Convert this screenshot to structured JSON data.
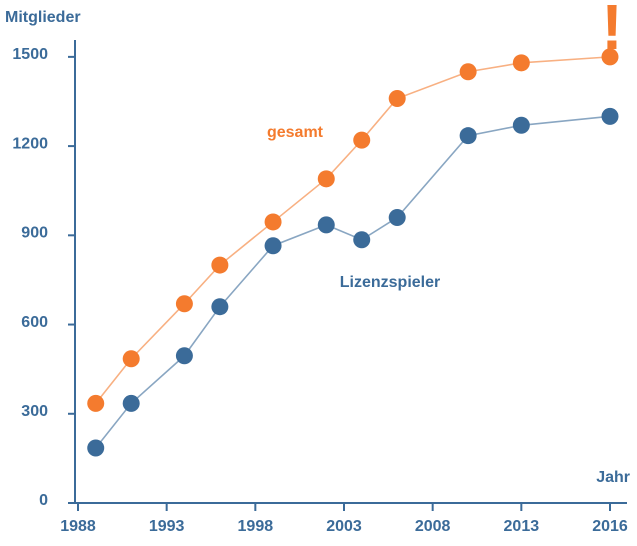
{
  "chart_data": {
    "type": "line",
    "y_label": "Mitglieder",
    "x_label": "Jahr",
    "annotation": "!",
    "x": [
      1989,
      1991,
      1994,
      1996,
      1999,
      2002,
      2004,
      2006,
      2010,
      2013,
      2016
    ],
    "series": [
      {
        "name": "gesamt",
        "color": "#f47b2e",
        "values": [
          335,
          485,
          670,
          800,
          945,
          1090,
          1220,
          1360,
          1450,
          1480,
          1500
        ]
      },
      {
        "name": "Lizenzspieler",
        "color": "#3b6b99",
        "values": [
          185,
          335,
          495,
          660,
          865,
          935,
          885,
          960,
          1235,
          1270,
          1300
        ]
      }
    ],
    "xlim": [
      1988,
      2016
    ],
    "xticks": [
      1988,
      1993,
      1998,
      2003,
      2008,
      2013,
      2016
    ],
    "ylim": [
      0,
      1550
    ],
    "yticks": [
      0,
      300,
      600,
      900,
      1200,
      1500
    ]
  }
}
